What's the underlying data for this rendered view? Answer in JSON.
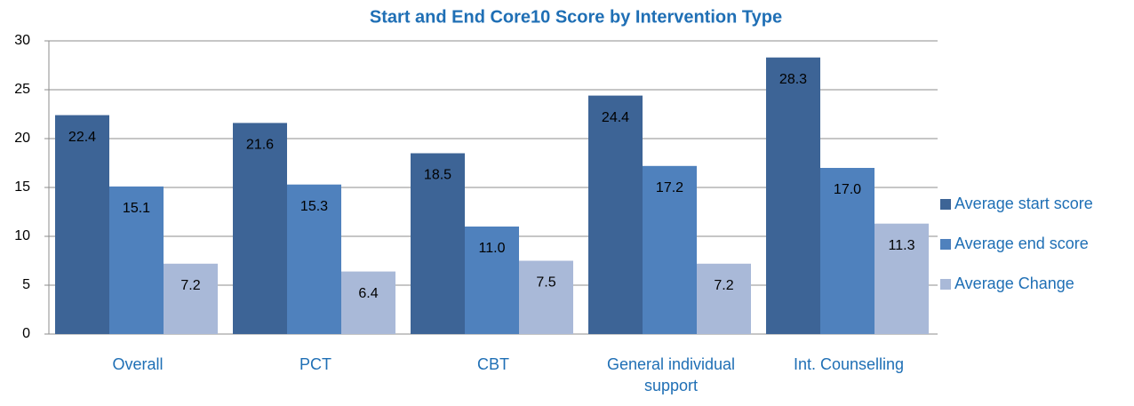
{
  "chart_data": {
    "type": "bar",
    "title": "Start and End Core10 Score by Intervention Type",
    "categories": [
      "Overall",
      "PCT",
      "CBT",
      "General individual support",
      "Int. Counselling"
    ],
    "series": [
      {
        "name": "Average start score",
        "color": "#3d6496",
        "values": [
          22.4,
          21.6,
          18.5,
          24.4,
          28.3
        ],
        "value_labels": [
          "22.4",
          "21.6",
          "18.5",
          "24.4",
          "28.3"
        ]
      },
      {
        "name": "Average end score",
        "color": "#4f81bd",
        "values": [
          15.1,
          15.3,
          11.0,
          17.2,
          17.0
        ],
        "value_labels": [
          "15.1",
          "15.3",
          "11.0",
          "17.2",
          "17.0"
        ]
      },
      {
        "name": "Average Change",
        "color": "#a9b9d8",
        "values": [
          7.2,
          6.4,
          7.5,
          7.2,
          11.3
        ],
        "value_labels": [
          "7.2",
          "6.4",
          "7.5",
          "7.2",
          "11.3"
        ]
      }
    ],
    "ylim": [
      0,
      30
    ],
    "yticks": [
      0,
      5,
      10,
      15,
      20,
      25,
      30
    ],
    "grid": true,
    "legend": "right"
  }
}
